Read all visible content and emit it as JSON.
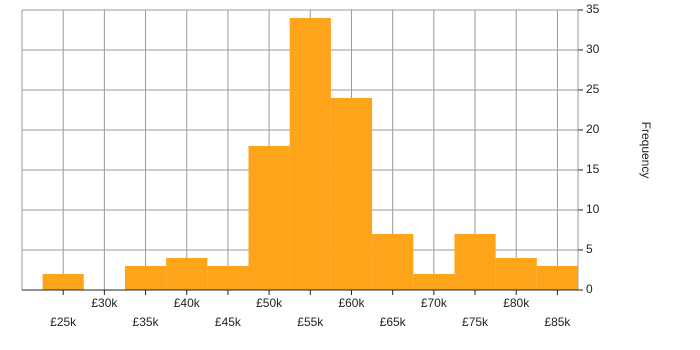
{
  "chart_data": {
    "type": "histogram",
    "y_label": "Frequency",
    "bins": [
      22500,
      27500,
      32500,
      37500,
      42500,
      47500,
      52500,
      57500,
      62500,
      67500,
      72500,
      77500,
      82500,
      87500
    ],
    "counts": [
      2,
      0,
      3,
      4,
      3,
      18,
      34,
      24,
      7,
      2,
      7,
      4,
      3
    ],
    "color": "#ffa31a",
    "xlim": [
      20000,
      87500
    ],
    "xticks": [
      {
        "value": 25000,
        "label": "£25k"
      },
      {
        "value": 30000,
        "label": "£30k"
      },
      {
        "value": 35000,
        "label": "£35k"
      },
      {
        "value": 40000,
        "label": "£40k"
      },
      {
        "value": 45000,
        "label": "£45k"
      },
      {
        "value": 50000,
        "label": "£50k"
      },
      {
        "value": 55000,
        "label": "£55k"
      },
      {
        "value": 60000,
        "label": "£60k"
      },
      {
        "value": 65000,
        "label": "£65k"
      },
      {
        "value": 70000,
        "label": "£70k"
      },
      {
        "value": 75000,
        "label": "£75k"
      },
      {
        "value": 80000,
        "label": "£80k"
      },
      {
        "value": 85000,
        "label": "£85k"
      }
    ],
    "ylim": [
      0,
      35
    ],
    "yticks": [
      0,
      5,
      10,
      15,
      20,
      25,
      30,
      35
    ],
    "grid": true
  }
}
